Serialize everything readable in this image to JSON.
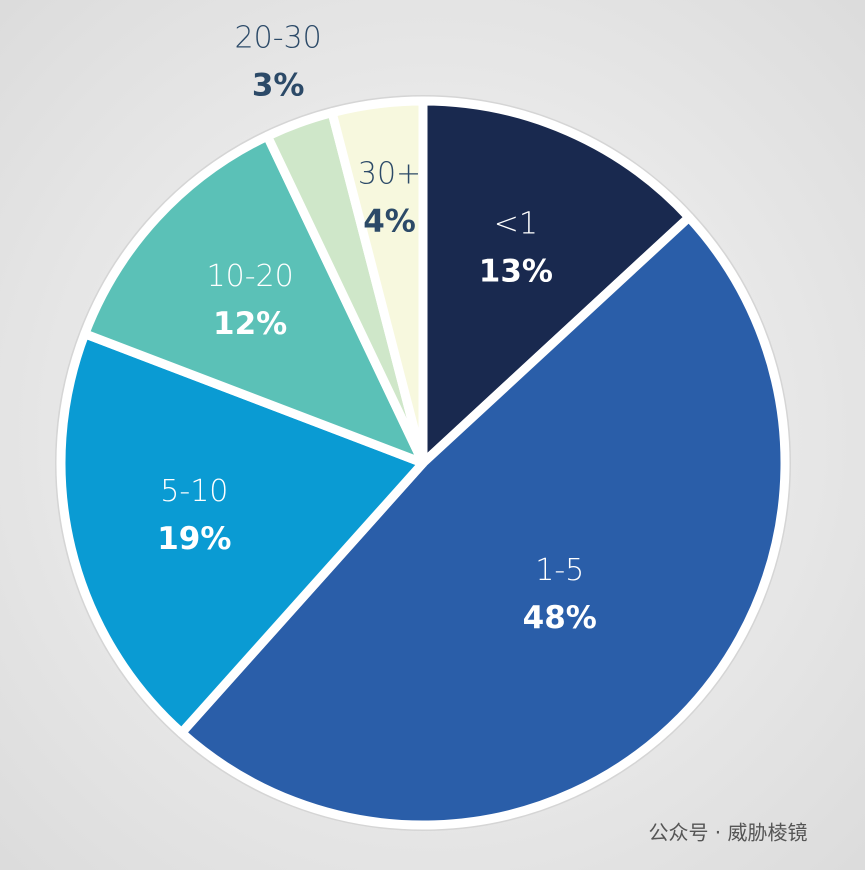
{
  "chart_data": {
    "type": "pie",
    "categories": [
      "<1",
      "1-5",
      "5-10",
      "10-20",
      "20-30",
      "30+"
    ],
    "values": [
      13,
      48,
      19,
      12,
      3,
      4
    ],
    "value_labels": [
      "13%",
      "48%",
      "19%",
      "12%",
      "3%",
      "4%"
    ],
    "colors": [
      "#19294f",
      "#2a5ea9",
      "#0a9bd3",
      "#5bc1b7",
      "#cfe7c9",
      "#f7f8de"
    ],
    "watermark": "公众号 · 威胁棱镜"
  }
}
